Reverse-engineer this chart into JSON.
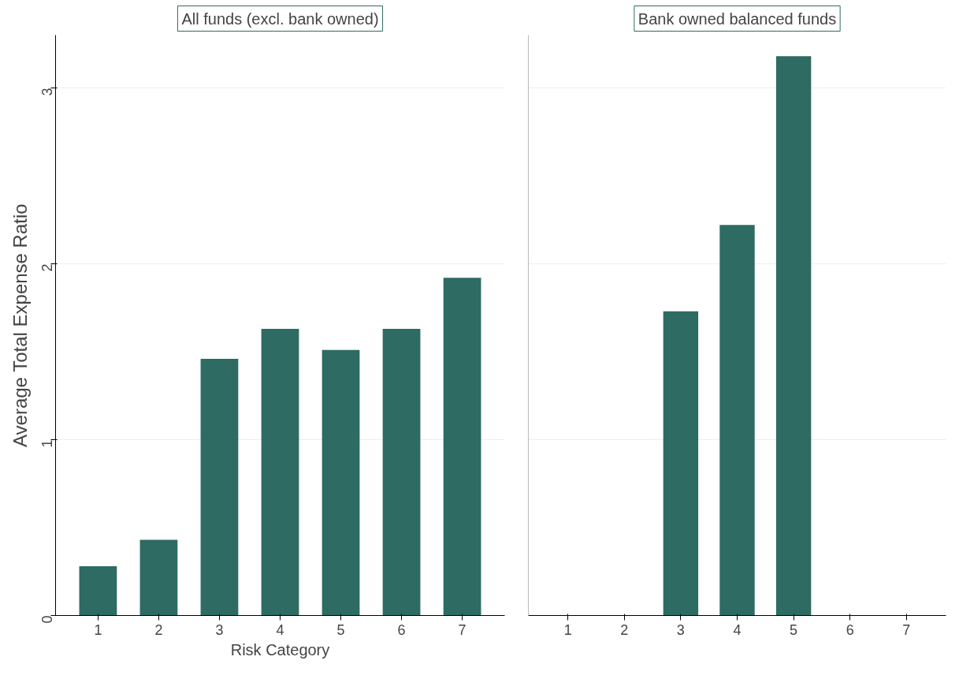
{
  "chart_data": [
    {
      "type": "bar",
      "title": "All funds (excl. bank owned)",
      "xlabel": "Risk Category",
      "ylabel": "Average Total Expense Ratio",
      "categories": [
        "1",
        "2",
        "3",
        "4",
        "5",
        "6",
        "7"
      ],
      "series": [
        {
          "color": "#2e6b62",
          "values": [
            0.28,
            0.43,
            1.46,
            1.63,
            1.51,
            1.63,
            1.92
          ]
        }
      ],
      "ylim": [
        0,
        3.3
      ],
      "yticks": [
        0,
        1,
        2,
        3
      ],
      "grid": "y"
    },
    {
      "type": "bar",
      "title": "Bank owned balanced funds",
      "categories": [
        "1",
        "2",
        "3",
        "4",
        "5",
        "6",
        "7"
      ],
      "series": [
        {
          "color": "#2e6b62",
          "values": [
            null,
            null,
            1.73,
            2.22,
            3.18,
            null,
            null
          ]
        }
      ],
      "ylim": [
        0,
        3.3
      ],
      "yticks": [
        0,
        1,
        2,
        3
      ],
      "grid": "y",
      "tick_labels": "x"
    }
  ]
}
